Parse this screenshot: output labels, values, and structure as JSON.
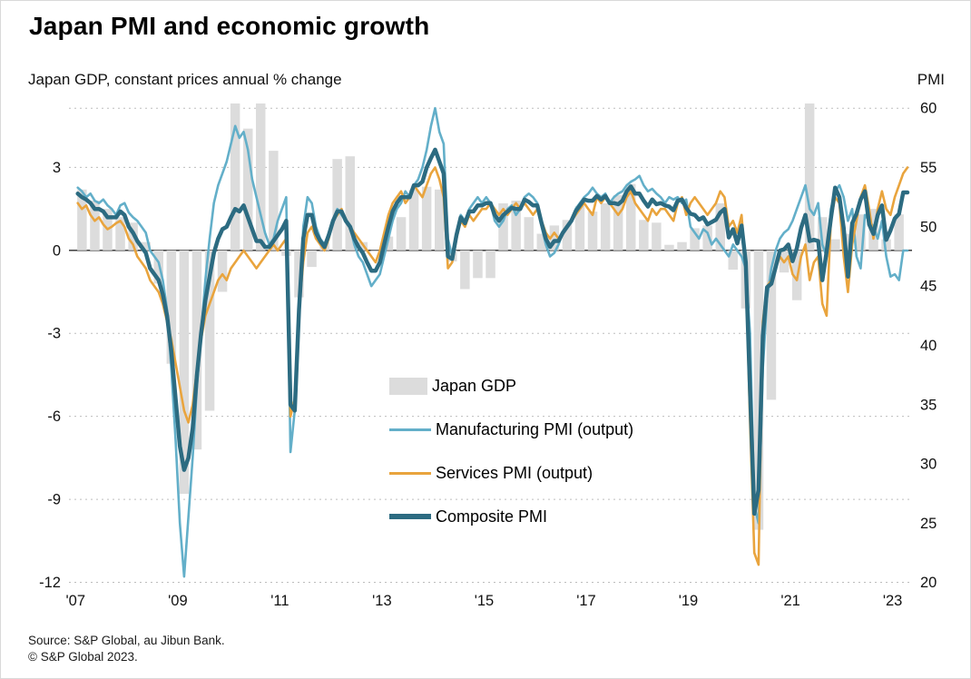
{
  "chart_data": {
    "type": "combo",
    "subtype": "bar+line",
    "title": "Japan PMI and economic growth",
    "left_axis": {
      "label": "Japan GDP, constant prices annual % change",
      "ticks": [
        3,
        0,
        -3,
        -6,
        -9,
        -12
      ],
      "range": [
        -12.05,
        5.31
      ]
    },
    "right_axis": {
      "label": "PMI",
      "ticks": [
        60,
        55,
        50,
        45,
        40,
        35,
        30,
        25,
        20
      ],
      "range": [
        19.9,
        60.4
      ]
    },
    "x_axis": {
      "labels": [
        "'07",
        "'09",
        "'11",
        "'13",
        "'15",
        "'17",
        "'19",
        "'21",
        "'23"
      ],
      "label_years": [
        2007,
        2009,
        2011,
        2013,
        2015,
        2017,
        2019,
        2021,
        2023
      ],
      "range": [
        2006.87,
        2023.38
      ]
    },
    "gridlines": {
      "dashed_left_ticks": [
        3,
        -3,
        -6,
        -9,
        -12
      ],
      "dashed_right_ticks": [
        60
      ],
      "solid_zero": true
    },
    "legend_position": "inside-center-bottom",
    "gdp": {
      "name": "Japan GDP",
      "color": "#dcdcdc",
      "frequency": "quarterly",
      "start_year": 2007,
      "values": [
        2.2,
        1.8,
        1.5,
        1.2,
        1.0,
        0.3,
        -1.2,
        -4.1,
        -8.8,
        -7.2,
        -5.8,
        -1.5,
        5.6,
        4.4,
        5.9,
        3.6,
        -0.2,
        -1.7,
        -0.6,
        0.3,
        3.3,
        3.4,
        0.3,
        0.0,
        0.5,
        1.2,
        2.2,
        2.3,
        2.2,
        -0.4,
        -1.4,
        -1.0,
        -1.0,
        1.7,
        1.8,
        1.2,
        0.6,
        0.9,
        1.1,
        1.6,
        1.4,
        1.7,
        2.0,
        2.4,
        1.1,
        1.0,
        0.2,
        0.3,
        0.8,
        0.9,
        1.7,
        -0.7,
        -2.1,
        -10.1,
        -5.4,
        -0.8,
        -1.8,
        7.6,
        1.2,
        0.4,
        0.6,
        1.3,
        1.5,
        0.4,
        1.3
      ]
    },
    "series": [
      {
        "id": "manufacturing-pmi",
        "name": "Manufacturing PMI (output)",
        "color": "#63afc9",
        "stroke_width": 2.6,
        "frequency": "monthly",
        "start_year": 2007,
        "values": [
          53.3,
          53.0,
          52.5,
          52.8,
          52.2,
          52.0,
          52.3,
          51.8,
          51.5,
          51.0,
          51.8,
          52.0,
          51.2,
          50.8,
          50.5,
          50.0,
          49.5,
          48.0,
          47.5,
          47.0,
          45.5,
          43.0,
          38.0,
          32.0,
          25.0,
          20.5,
          25.5,
          30.5,
          36.5,
          41.0,
          45.5,
          49.0,
          52.0,
          53.5,
          54.5,
          55.5,
          57.0,
          58.5,
          57.5,
          58.0,
          56.5,
          54.0,
          52.5,
          51.0,
          49.5,
          48.5,
          49.0,
          50.5,
          51.5,
          52.5,
          31.0,
          34.5,
          42.0,
          50.0,
          52.5,
          52.0,
          50.0,
          49.0,
          48.5,
          49.5,
          50.5,
          51.5,
          51.0,
          50.5,
          50.0,
          48.5,
          47.5,
          47.0,
          46.0,
          45.0,
          45.5,
          46.0,
          47.5,
          49.0,
          50.5,
          51.5,
          52.0,
          53.0,
          52.5,
          53.5,
          54.0,
          55.0,
          56.5,
          58.5,
          60.0,
          58.0,
          57.0,
          49.0,
          47.5,
          49.5,
          51.0,
          50.5,
          51.5,
          52.0,
          52.5,
          52.0,
          52.5,
          52.0,
          50.5,
          50.0,
          50.5,
          51.5,
          51.8,
          51.0,
          51.5,
          52.5,
          52.8,
          52.5,
          52.0,
          50.0,
          48.5,
          47.5,
          47.8,
          48.5,
          49.5,
          50.0,
          50.5,
          51.5,
          52.0,
          52.5,
          52.8,
          53.3,
          52.8,
          52.5,
          52.8,
          52.0,
          52.5,
          52.8,
          53.0,
          53.5,
          53.8,
          54.0,
          54.3,
          53.5,
          53.0,
          53.2,
          52.8,
          52.5,
          52.0,
          52.5,
          52.3,
          52.5,
          52.0,
          52.3,
          50.0,
          49.5,
          49.0,
          49.8,
          49.5,
          48.5,
          49.0,
          48.5,
          48.0,
          47.5,
          48.5,
          48.0,
          47.5,
          46.5,
          41.0,
          26.5,
          25.0,
          38.0,
          44.0,
          46.5,
          48.0,
          49.0,
          49.5,
          49.8,
          50.5,
          51.5,
          52.5,
          53.5,
          51.5,
          51.0,
          52.0,
          48.5,
          47.5,
          51.5,
          53.0,
          53.5,
          52.5,
          50.5,
          51.5,
          47.5,
          46.5,
          51.0,
          50.5,
          50.0,
          49.0,
          50.5,
          47.5,
          45.8,
          46.0,
          45.5,
          48.0,
          48.0
        ]
      },
      {
        "id": "services-pmi",
        "name": "Services PMI (output)",
        "color": "#e9a43d",
        "stroke_width": 2.6,
        "frequency": "monthly",
        "start_year": 2007,
        "values": [
          52.0,
          51.5,
          51.8,
          51.0,
          50.5,
          50.8,
          50.2,
          49.8,
          50.0,
          50.3,
          50.5,
          50.0,
          49.0,
          48.5,
          47.5,
          47.0,
          46.5,
          45.5,
          45.0,
          44.5,
          43.5,
          42.0,
          40.5,
          38.5,
          36.5,
          34.5,
          33.5,
          35.0,
          38.0,
          40.5,
          42.5,
          43.5,
          44.5,
          45.5,
          46.0,
          45.5,
          46.5,
          47.0,
          47.5,
          48.0,
          47.5,
          47.0,
          46.5,
          47.0,
          47.5,
          48.0,
          48.5,
          48.0,
          48.5,
          49.0,
          34.0,
          35.5,
          43.0,
          47.0,
          49.5,
          50.0,
          49.0,
          48.5,
          48.0,
          49.0,
          50.5,
          51.0,
          51.5,
          50.5,
          50.0,
          49.5,
          49.0,
          48.5,
          48.0,
          47.5,
          47.0,
          48.0,
          49.5,
          51.0,
          52.0,
          52.5,
          53.0,
          52.0,
          52.5,
          53.5,
          53.0,
          52.5,
          53.5,
          54.5,
          55.0,
          54.0,
          52.5,
          46.5,
          47.0,
          49.0,
          50.5,
          50.0,
          51.0,
          50.5,
          51.0,
          51.5,
          51.5,
          52.0,
          51.5,
          51.0,
          51.5,
          51.0,
          51.5,
          52.0,
          51.5,
          52.0,
          51.5,
          51.0,
          51.5,
          50.5,
          49.5,
          49.0,
          49.5,
          49.0,
          49.5,
          50.0,
          50.5,
          51.0,
          51.5,
          52.0,
          51.5,
          51.0,
          52.5,
          52.0,
          52.5,
          52.0,
          51.5,
          51.0,
          51.5,
          52.5,
          53.0,
          52.0,
          51.5,
          51.0,
          50.5,
          51.5,
          51.0,
          51.5,
          51.5,
          51.0,
          50.5,
          52.0,
          52.5,
          51.0,
          52.0,
          52.5,
          52.0,
          51.5,
          51.0,
          51.5,
          52.0,
          53.0,
          52.5,
          50.0,
          50.5,
          49.5,
          51.0,
          46.5,
          33.5,
          22.5,
          21.5,
          42.0,
          45.0,
          45.5,
          46.5,
          47.5,
          47.0,
          47.5,
          46.0,
          45.5,
          47.5,
          48.5,
          45.5,
          47.0,
          47.5,
          43.5,
          42.5,
          50.5,
          52.5,
          52.0,
          47.5,
          44.5,
          48.5,
          50.5,
          52.5,
          53.5,
          51.5,
          49.0,
          51.5,
          53.0,
          51.5,
          51.0,
          52.5,
          53.5,
          54.5,
          55.0
        ]
      },
      {
        "id": "composite-pmi",
        "name": "Composite PMI",
        "color": "#2c6b81",
        "stroke_width": 4.5,
        "frequency": "monthly",
        "start_year": 2007,
        "values": [
          52.8,
          52.5,
          52.3,
          52.0,
          51.5,
          51.5,
          51.3,
          50.8,
          50.8,
          50.8,
          51.3,
          51.0,
          50.0,
          49.5,
          48.8,
          48.3,
          47.8,
          46.5,
          46.0,
          45.5,
          44.3,
          42.5,
          39.5,
          35.5,
          31.5,
          29.5,
          30.5,
          33.0,
          37.5,
          41.0,
          43.8,
          45.8,
          47.8,
          49.0,
          49.8,
          50.0,
          50.8,
          51.5,
          51.3,
          51.8,
          50.8,
          49.8,
          48.8,
          48.8,
          48.3,
          48.3,
          48.8,
          49.3,
          49.8,
          50.5,
          35.0,
          34.5,
          43.0,
          49.0,
          51.0,
          51.0,
          49.5,
          48.8,
          48.3,
          49.3,
          50.5,
          51.3,
          51.3,
          50.5,
          50.0,
          49.0,
          48.3,
          47.8,
          47.0,
          46.3,
          46.3,
          47.0,
          48.5,
          50.0,
          51.3,
          52.0,
          52.5,
          52.5,
          52.5,
          53.5,
          53.5,
          53.8,
          55.0,
          55.8,
          56.5,
          55.5,
          54.5,
          47.5,
          47.3,
          49.3,
          50.8,
          50.3,
          51.3,
          51.3,
          51.8,
          51.8,
          52.0,
          52.0,
          51.0,
          50.5,
          51.0,
          51.3,
          51.6,
          51.5,
          51.5,
          52.3,
          52.1,
          51.8,
          51.8,
          50.3,
          49.0,
          48.3,
          48.8,
          48.8,
          49.5,
          50.0,
          50.5,
          51.3,
          51.8,
          52.3,
          52.2,
          52.2,
          52.6,
          52.3,
          52.6,
          52.0,
          52.0,
          51.9,
          52.2,
          53.0,
          53.4,
          52.8,
          52.8,
          52.2,
          51.7,
          52.3,
          51.9,
          52.0,
          51.8,
          51.7,
          51.4,
          52.2,
          52.3,
          51.6,
          51.1,
          51.0,
          50.6,
          50.8,
          50.2,
          50.4,
          50.6,
          51.2,
          51.5,
          49.1,
          49.8,
          48.6,
          50.1,
          47.0,
          36.2,
          25.8,
          27.8,
          40.8,
          44.9,
          45.2,
          46.6,
          48.0,
          48.1,
          48.5,
          47.1,
          48.2,
          49.9,
          51.0,
          48.8,
          48.9,
          48.8,
          45.5,
          47.9,
          50.7,
          53.3,
          52.5,
          49.9,
          45.8,
          50.3,
          51.1,
          52.3,
          53.0,
          50.2,
          49.4,
          51.0,
          51.8,
          48.9,
          49.7,
          50.7,
          51.1,
          52.9,
          52.9
        ]
      }
    ],
    "source": "Source: S&P Global, au Jibun Bank.",
    "copyright": "© S&P Global 2023."
  }
}
